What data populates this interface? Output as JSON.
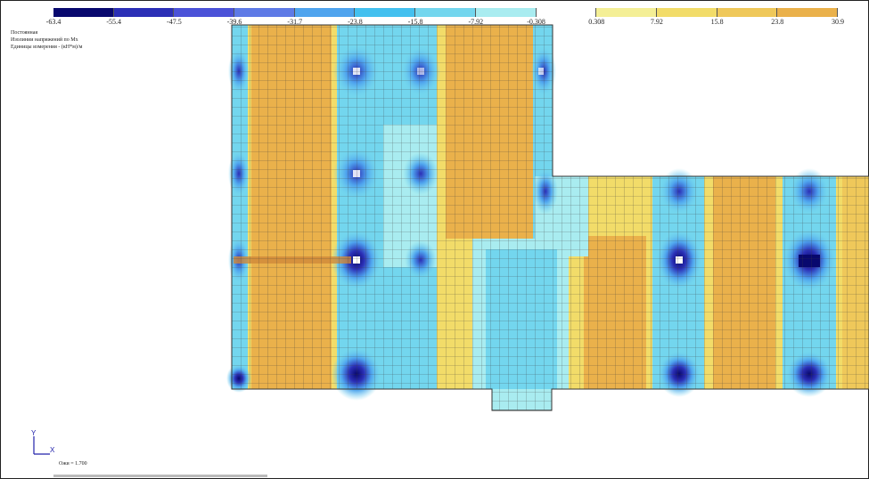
{
  "legend": {
    "ticks": [
      "-63.4",
      "-55.4",
      "-47.5",
      "-39.6",
      "-31.7",
      "-23.8",
      "-15.8",
      "-7.92",
      "-0.308",
      "0.308",
      "7.92",
      "15.8",
      "23.8",
      "30.9"
    ],
    "colors": [
      "#08086e",
      "#2b2fb6",
      "#4b52d8",
      "#5e7ae6",
      "#4fa4ee",
      "#43c0ef",
      "#73d6ee",
      "#a9ecf0",
      "#ffffff",
      "#f4ef96",
      "#f2dc69",
      "#efc85a",
      "#eab14b"
    ]
  },
  "info": {
    "line1": "Постоянная",
    "line2": "Изолинии напряжений по Мх",
    "line3": "Единицы измерения - (кН*м)/м"
  },
  "axis": {
    "y_label": "Y",
    "x_label": "X"
  },
  "scale_text": "Ожи = 1.700"
}
